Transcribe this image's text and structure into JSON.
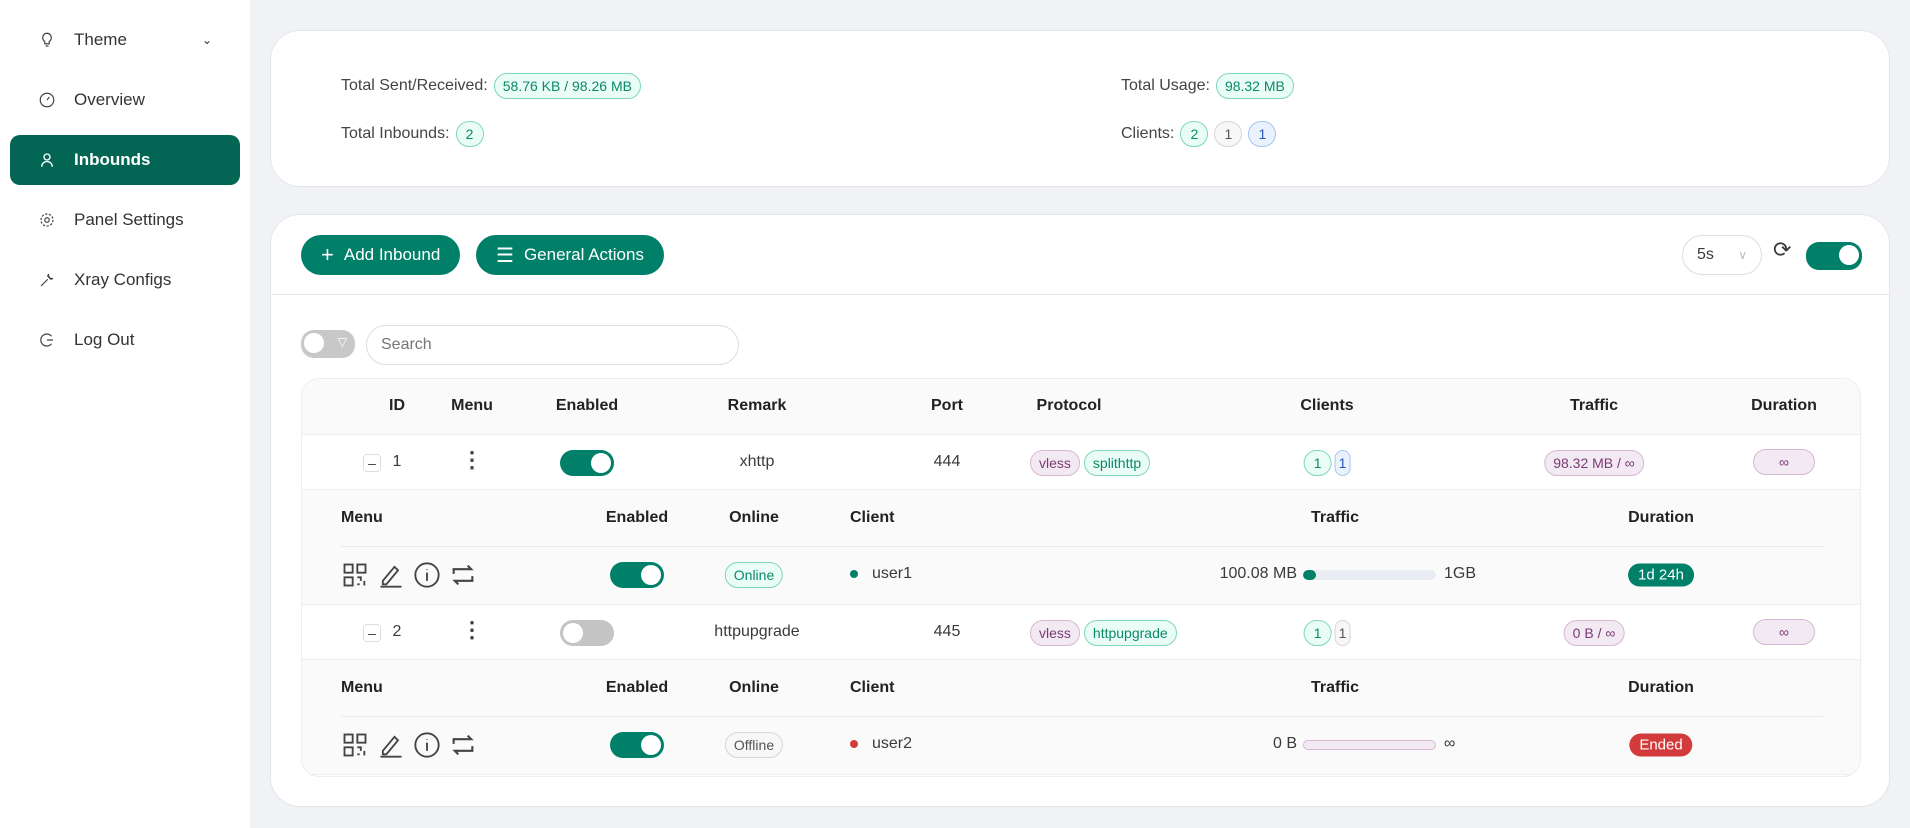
{
  "sidebar": {
    "items": [
      {
        "label": "Theme",
        "icon": "lightbulb-icon"
      },
      {
        "label": "Overview",
        "icon": "dashboard-icon"
      },
      {
        "label": "Inbounds",
        "icon": "user-icon",
        "active": true
      },
      {
        "label": "Panel Settings",
        "icon": "gear-icon"
      },
      {
        "label": "Xray Configs",
        "icon": "wrench-icon"
      },
      {
        "label": "Log Out",
        "icon": "logout-icon"
      }
    ]
  },
  "stats": {
    "sent_received_label": "Total Sent/Received:",
    "sent_received": "58.76 KB / 98.26 MB",
    "usage_label": "Total Usage:",
    "usage": "98.32 MB",
    "inbounds_label": "Total Inbounds:",
    "inbounds": "2",
    "clients_label": "Clients:",
    "clients_total": "2",
    "clients_b": "1",
    "clients_c": "1"
  },
  "toolbar": {
    "add": "Add Inbound",
    "general": "General Actions",
    "interval": "5s",
    "auto_refresh": true
  },
  "search": {
    "placeholder": "Search"
  },
  "table": {
    "headers": [
      "ID",
      "Menu",
      "Enabled",
      "Remark",
      "Port",
      "Protocol",
      "Clients",
      "Traffic",
      "Duration"
    ],
    "sub_headers": [
      "Menu",
      "Enabled",
      "Online",
      "Client",
      "Traffic",
      "Duration"
    ],
    "rows": [
      {
        "id": "1",
        "enabled": true,
        "remark": "xhttp",
        "port": "444",
        "protocol": "vless",
        "transport": "splithttp",
        "clients_a": "1",
        "clients_b": "1",
        "traffic": "98.32 MB / ∞",
        "duration": "∞",
        "client": {
          "enabled": true,
          "online": "Online",
          "name": "user1",
          "used": "100.08 MB",
          "limit": "1GB",
          "progress": 0.1,
          "duration": "1d 24h",
          "duration_color": "#008069"
        }
      },
      {
        "id": "2",
        "enabled": false,
        "remark": "httpupgrade",
        "port": "445",
        "protocol": "vless",
        "transport": "httpupgrade",
        "clients_a": "1",
        "clients_b": "1",
        "traffic": "0 B / ∞",
        "duration": "∞",
        "client": {
          "enabled": true,
          "online": "Offline",
          "name": "user2",
          "used": "0 B",
          "limit": "∞",
          "progress": 0,
          "duration": "Ended",
          "duration_color": "#d13b3b"
        }
      }
    ]
  }
}
